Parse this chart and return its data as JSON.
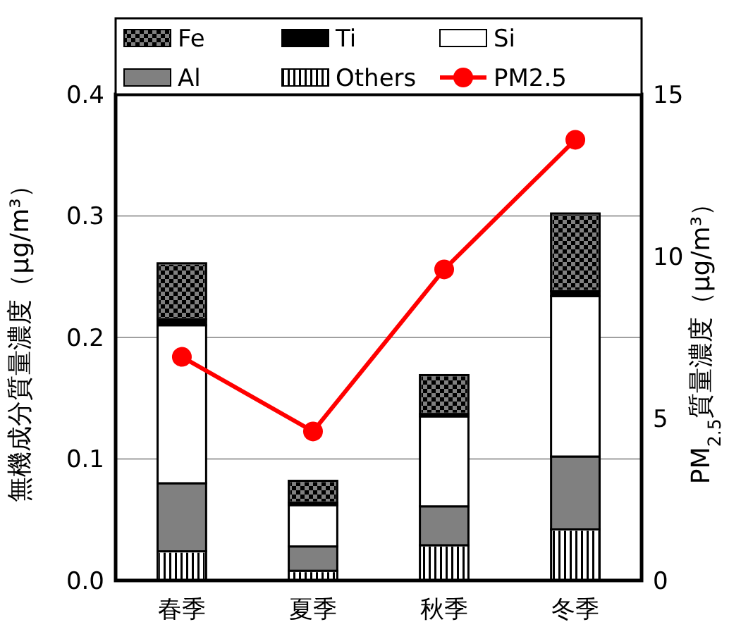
{
  "chart_data": {
    "type": "bar",
    "stacked": true,
    "categories": [
      "春季",
      "夏季",
      "秋季",
      "冬季"
    ],
    "ylabel": "無機成分質量濃度（μg/m³）",
    "y2label": "PM$_{2.5}$質量濃度（μg/m³）",
    "ylim": [
      0,
      0.4
    ],
    "yticks": [
      {
        "value": 0,
        "label": "0.0"
      },
      0.1,
      0.2,
      0.3,
      0.4
    ],
    "y2lim": [
      0,
      15
    ],
    "y2ticks": [
      0,
      5,
      10,
      15
    ],
    "grid": "y",
    "legend": "top",
    "marker": "circle",
    "line_style": "solid",
    "series": [
      {
        "name": "Others",
        "color": "#ffffff",
        "values": [
          0.024,
          0.008,
          0.029,
          0.042
        ]
      },
      {
        "name": "Al",
        "color": "#808080",
        "values": [
          0.056,
          0.02,
          0.032,
          0.06
        ]
      },
      {
        "name": "Si",
        "color": "#ffffff",
        "values": [
          0.13,
          0.034,
          0.074,
          0.132
        ]
      },
      {
        "name": "Ti",
        "color": "#000000",
        "values": [
          0.005,
          0.002,
          0.002,
          0.004
        ]
      },
      {
        "name": "Fe",
        "color": "#808080",
        "values": [
          0.046,
          0.018,
          0.032,
          0.064
        ]
      },
      {
        "name": "PM2.5",
        "type": "line",
        "axis": "y2",
        "color": "#ff0000",
        "values": [
          6.9,
          4.6,
          9.6,
          13.6
        ]
      }
    ]
  }
}
